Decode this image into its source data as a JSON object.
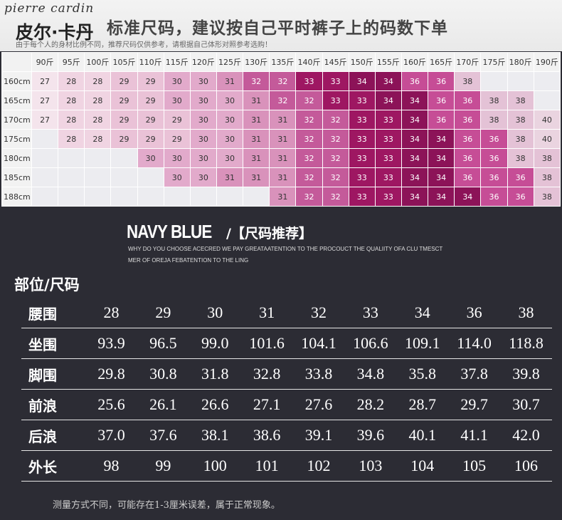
{
  "header": {
    "brand_en": "pierre cardin",
    "brand_cn": "皮尔·卡丹",
    "title": "标准尺码，建议按自己平时裤子上的码数下单",
    "note": "由于每个人的身材比例不同，推荐尺码仅供参考，请根据自己体形对照参考选购！"
  },
  "weight_table": {
    "weights": [
      "90斤",
      "95斤",
      "100斤",
      "105斤",
      "110斤",
      "115斤",
      "120斤",
      "125斤",
      "130斤",
      "135斤",
      "140斤",
      "145斤",
      "150斤",
      "155斤",
      "160斤",
      "165斤",
      "170斤",
      "175斤",
      "180斤",
      "190斤"
    ],
    "rows": [
      {
        "height": "160cm",
        "cells": [
          "27",
          "28",
          "28",
          "29",
          "29",
          "30",
          "30",
          "31",
          "32",
          "32",
          "33",
          "33",
          "34",
          "34",
          "36",
          "36",
          "38",
          "",
          "",
          ""
        ]
      },
      {
        "height": "165cm",
        "cells": [
          "27",
          "28",
          "28",
          "29",
          "29",
          "30",
          "30",
          "30",
          "31",
          "32",
          "32",
          "33",
          "33",
          "34",
          "34",
          "36",
          "36",
          "38",
          "38",
          ""
        ]
      },
      {
        "height": "170cm",
        "cells": [
          "27",
          "28",
          "28",
          "29",
          "29",
          "29",
          "30",
          "30",
          "31",
          "31",
          "32",
          "32",
          "33",
          "33",
          "34",
          "36",
          "36",
          "38",
          "38",
          "40"
        ]
      },
      {
        "height": "175cm",
        "cells": [
          "",
          "28",
          "28",
          "29",
          "29",
          "29",
          "30",
          "30",
          "31",
          "31",
          "32",
          "32",
          "33",
          "33",
          "34",
          "34",
          "36",
          "36",
          "38",
          "40"
        ]
      },
      {
        "height": "180cm",
        "cells": [
          "",
          "",
          "",
          "",
          "30",
          "30",
          "30",
          "30",
          "31",
          "31",
          "32",
          "32",
          "33",
          "33",
          "34",
          "34",
          "36",
          "36",
          "38",
          "38"
        ]
      },
      {
        "height": "185cm",
        "cells": [
          "",
          "",
          "",
          "",
          "",
          "30",
          "30",
          "31",
          "31",
          "31",
          "32",
          "32",
          "33",
          "33",
          "34",
          "34",
          "36",
          "36",
          "36",
          "38"
        ]
      },
      {
        "height": "188cm",
        "cells": [
          "",
          "",
          "",
          "",
          "",
          "",
          "",
          "",
          "",
          "31",
          "32",
          "32",
          "33",
          "33",
          "34",
          "34",
          "34",
          "36",
          "36",
          "38"
        ]
      }
    ],
    "colors": {
      "empty": "#ececf0",
      "27": "#f4e4ec",
      "28": "#f0d4e2",
      "29": "#eac2d7",
      "30": "#e2aacb",
      "31": "#d992bb",
      "32": "#c45a9a",
      "33": "#9e1762",
      "34": "#8c1358",
      "36": "#c64d96",
      "38": "#e4c2d6",
      "40": "#ead4e0"
    }
  },
  "navy": {
    "title": "NAVY BLUE",
    "subtitle": "/【尺码推荐】",
    "desc_line1": "WHY DO YOU CHOOSE ACECRED WE PAY GREATAATENTION TO THE PROCOUCT THE QUALIITY OFA CLU TMESCT",
    "desc_line2": "MER OF OREJA FEBATENTION TO THE LING"
  },
  "size_table": {
    "heading": "部位/尺码",
    "rows": [
      {
        "label": "腰围",
        "values": [
          "28",
          "29",
          "30",
          "31",
          "32",
          "33",
          "34",
          "36",
          "38"
        ]
      },
      {
        "label": "坐围",
        "values": [
          "93.9",
          "96.5",
          "99.0",
          "101.6",
          "104.1",
          "106.6",
          "109.1",
          "114.0",
          "118.8"
        ]
      },
      {
        "label": "脚围",
        "values": [
          "29.8",
          "30.8",
          "31.8",
          "32.8",
          "33.8",
          "34.8",
          "35.8",
          "37.8",
          "39.8"
        ]
      },
      {
        "label": "前浪",
        "values": [
          "25.6",
          "26.1",
          "26.6",
          "27.1",
          "27.6",
          "28.2",
          "28.7",
          "29.7",
          "30.7"
        ]
      },
      {
        "label": "后浪",
        "values": [
          "37.0",
          "37.6",
          "38.1",
          "38.6",
          "39.1",
          "39.6",
          "40.1",
          "41.1",
          "42.0"
        ]
      },
      {
        "label": "外长",
        "values": [
          "98",
          "99",
          "100",
          "101",
          "102",
          "103",
          "104",
          "105",
          "106"
        ]
      }
    ]
  },
  "footnote": "测量方式不同，可能存在1-3厘米误差，属于正常现象。"
}
